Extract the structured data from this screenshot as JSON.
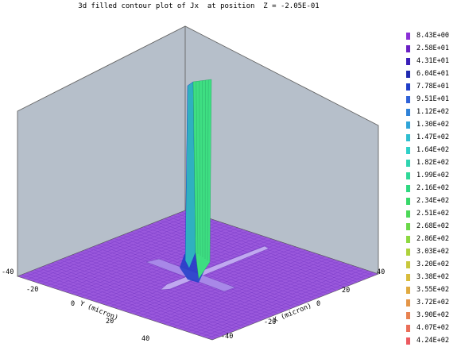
{
  "chart_data": {
    "type": "surface",
    "title": "3d filled contour plot of Jx  at position  Z = -2.05E-01",
    "xlabel": "X (micron)",
    "ylabel": "Y (micron)",
    "x_ticks": [
      "-40",
      "-20",
      "0",
      "20",
      "40"
    ],
    "y_ticks": [
      "-40",
      "-20",
      "0",
      "20",
      "40"
    ],
    "xlim": [
      -40,
      40
    ],
    "ylim": [
      -40,
      40
    ],
    "legend": {
      "placement": "right",
      "levels": [
        {
          "label": "8.43E+00",
          "color": "#8b2fd6"
        },
        {
          "label": "2.58E+01",
          "color": "#6a1fc4"
        },
        {
          "label": "4.31E+01",
          "color": "#3a1fb8"
        },
        {
          "label": "6.04E+01",
          "color": "#1f2ab0"
        },
        {
          "label": "7.78E+01",
          "color": "#1f3ec8"
        },
        {
          "label": "9.51E+01",
          "color": "#2f62d8"
        },
        {
          "label": "1.12E+02",
          "color": "#2f82d8"
        },
        {
          "label": "1.30E+02",
          "color": "#2fa4d8"
        },
        {
          "label": "1.47E+02",
          "color": "#2fbed0"
        },
        {
          "label": "1.64E+02",
          "color": "#2fd0c8"
        },
        {
          "label": "1.82E+02",
          "color": "#2fd4b0"
        },
        {
          "label": "1.99E+02",
          "color": "#2fd898"
        },
        {
          "label": "2.16E+02",
          "color": "#2fd880"
        },
        {
          "label": "2.34E+02",
          "color": "#38d86a"
        },
        {
          "label": "2.51E+02",
          "color": "#4cd858"
        },
        {
          "label": "2.68E+02",
          "color": "#6ad848"
        },
        {
          "label": "2.86E+02",
          "color": "#8cd840"
        },
        {
          "label": "3.03E+02",
          "color": "#aed23c"
        },
        {
          "label": "3.20E+02",
          "color": "#c8c83c"
        },
        {
          "label": "3.38E+02",
          "color": "#d8bc3c"
        },
        {
          "label": "3.55E+02",
          "color": "#e0aa40"
        },
        {
          "label": "3.72E+02",
          "color": "#e49648"
        },
        {
          "label": "3.90E+02",
          "color": "#e88250"
        },
        {
          "label": "4.07E+02",
          "color": "#ea6e58"
        },
        {
          "label": "4.24E+02",
          "color": "#ec5a60"
        }
      ]
    },
    "colors": {
      "wall": "#b6bfca",
      "wall_dark": "#a8b1bd",
      "floor": "#9a58dc",
      "spike_front": "#3ede82",
      "spike_side": "#2fb0c0",
      "base_glow": "#1f3ec8"
    }
  }
}
